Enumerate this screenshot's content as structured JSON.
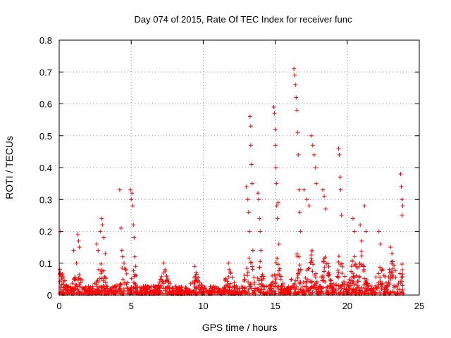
{
  "chart_data": {
    "type": "scatter",
    "title": "Day 074 of 2015, Rate Of TEC Index for receiver func",
    "xlabel": "GPS time / hours",
    "ylabel": "ROTI / TECUs",
    "xlim": [
      0,
      25
    ],
    "ylim": [
      0,
      0.8
    ],
    "xticks": [
      "0",
      "5",
      "10",
      "15",
      "20",
      "25"
    ],
    "yticks": [
      "0",
      "0.1",
      "0.2",
      "0.3",
      "0.4",
      "0.5",
      "0.6",
      "0.7",
      "0.8"
    ],
    "grid": true,
    "marker": "+",
    "color": "#ff0000",
    "series": [
      {
        "name": "ROTI",
        "points": [
          [
            0.05,
            0.08
          ],
          [
            0.1,
            0.2
          ],
          [
            0.15,
            0.06
          ],
          [
            1.0,
            0.14
          ],
          [
            1.2,
            0.1
          ],
          [
            1.3,
            0.19
          ],
          [
            1.35,
            0.17
          ],
          [
            1.4,
            0.15
          ],
          [
            2.6,
            0.16
          ],
          [
            2.7,
            0.14
          ],
          [
            2.85,
            0.2
          ],
          [
            2.95,
            0.24
          ],
          [
            3.0,
            0.22
          ],
          [
            3.1,
            0.18
          ],
          [
            3.2,
            0.13
          ],
          [
            4.2,
            0.33
          ],
          [
            4.3,
            0.21
          ],
          [
            4.35,
            0.14
          ],
          [
            4.4,
            0.12
          ],
          [
            4.5,
            0.1
          ],
          [
            4.6,
            0.08
          ],
          [
            4.95,
            0.33
          ],
          [
            5.0,
            0.3
          ],
          [
            5.05,
            0.32
          ],
          [
            5.1,
            0.28
          ],
          [
            5.15,
            0.22
          ],
          [
            5.2,
            0.18
          ],
          [
            5.25,
            0.12
          ],
          [
            5.3,
            0.09
          ],
          [
            7.25,
            0.1
          ],
          [
            7.35,
            0.08
          ],
          [
            7.45,
            0.06
          ],
          [
            9.4,
            0.09
          ],
          [
            9.5,
            0.07
          ],
          [
            11.75,
            0.1
          ],
          [
            11.8,
            0.08
          ],
          [
            13.0,
            0.34
          ],
          [
            13.1,
            0.3
          ],
          [
            13.15,
            0.26
          ],
          [
            13.2,
            0.2
          ],
          [
            13.25,
            0.56
          ],
          [
            13.3,
            0.53
          ],
          [
            13.3,
            0.47
          ],
          [
            13.35,
            0.41
          ],
          [
            13.4,
            0.35
          ],
          [
            13.45,
            0.14
          ],
          [
            13.8,
            0.32
          ],
          [
            13.85,
            0.3
          ],
          [
            13.9,
            0.24
          ],
          [
            13.95,
            0.2
          ],
          [
            14.0,
            0.14
          ],
          [
            14.9,
            0.59
          ],
          [
            14.95,
            0.57
          ],
          [
            15.0,
            0.52
          ],
          [
            15.02,
            0.47
          ],
          [
            15.05,
            0.4
          ],
          [
            15.08,
            0.35
          ],
          [
            15.1,
            0.28
          ],
          [
            15.15,
            0.24
          ],
          [
            15.2,
            0.29
          ],
          [
            15.25,
            0.16
          ],
          [
            16.3,
            0.71
          ],
          [
            16.35,
            0.69
          ],
          [
            16.4,
            0.66
          ],
          [
            16.45,
            0.62
          ],
          [
            16.5,
            0.58
          ],
          [
            16.55,
            0.51
          ],
          [
            16.6,
            0.44
          ],
          [
            16.65,
            0.33
          ],
          [
            16.7,
            0.26
          ],
          [
            16.75,
            0.2
          ],
          [
            17.0,
            0.33
          ],
          [
            17.2,
            0.3
          ],
          [
            17.35,
            0.28
          ],
          [
            17.5,
            0.5
          ],
          [
            17.6,
            0.47
          ],
          [
            17.7,
            0.44
          ],
          [
            17.8,
            0.4
          ],
          [
            17.85,
            0.35
          ],
          [
            18.3,
            0.33
          ],
          [
            18.4,
            0.31
          ],
          [
            18.5,
            0.27
          ],
          [
            19.4,
            0.46
          ],
          [
            19.45,
            0.44
          ],
          [
            19.5,
            0.37
          ],
          [
            19.55,
            0.33
          ],
          [
            19.6,
            0.25
          ],
          [
            20.4,
            0.24
          ],
          [
            20.5,
            0.2
          ],
          [
            20.9,
            0.22
          ],
          [
            21.0,
            0.17
          ],
          [
            21.2,
            0.28
          ],
          [
            21.3,
            0.2
          ],
          [
            22.2,
            0.2
          ],
          [
            22.3,
            0.16
          ],
          [
            23.0,
            0.15
          ],
          [
            23.1,
            0.13
          ],
          [
            23.7,
            0.38
          ],
          [
            23.75,
            0.34
          ],
          [
            23.8,
            0.3
          ],
          [
            23.85,
            0.28
          ],
          [
            23.8,
            0.25
          ]
        ]
      }
    ]
  }
}
